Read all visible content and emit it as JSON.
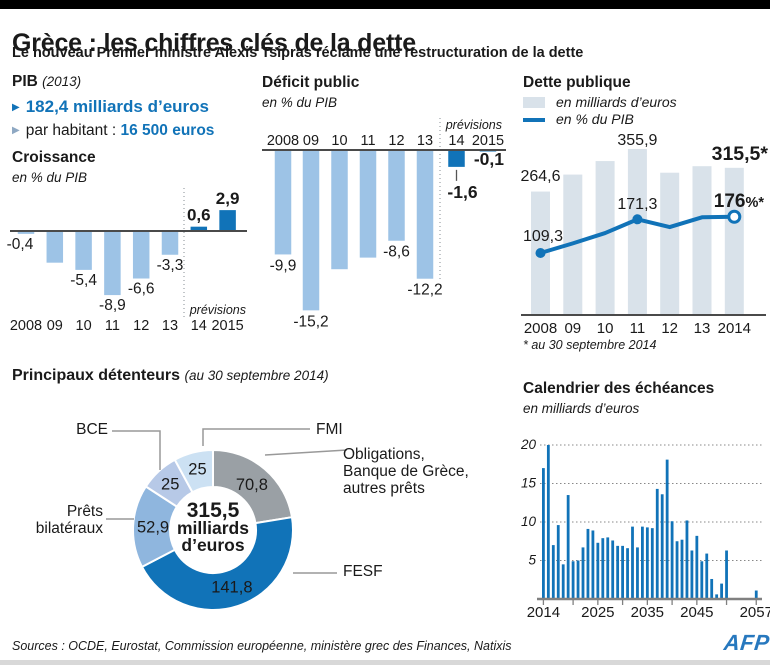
{
  "header": {
    "title": "Grèce : les chiffres clés de la dette",
    "subtitle": "Le nouveau Premier ministre Alexis Tsipras réclame une restructuration de la dette"
  },
  "pib": {
    "label": "PIB",
    "year": "(2013)",
    "bullet1": "182,4 milliards d’euros",
    "bullet2_prefix": "par habitant : ",
    "bullet2_value": "16 500 euros"
  },
  "colors": {
    "accent_blue": "#1173b8",
    "light_blue": "#9dc3e6",
    "pale_bar": "#d9e2ea",
    "gray_slice": "#9aa0a5",
    "axis_gray": "#4a4a4a"
  },
  "chart_data": [
    {
      "id": "croissance",
      "type": "bar",
      "title": "Croissance",
      "unit_label": "en % du PIB",
      "categories": [
        "2008",
        "09",
        "10",
        "11",
        "12",
        "13",
        "14",
        "2015"
      ],
      "values": [
        -0.4,
        -4.4,
        -5.4,
        -8.9,
        -6.6,
        -3.3,
        0.6,
        2.9
      ],
      "bar_labels": [
        "-0,4",
        "",
        "-5,4",
        "-8,9",
        "-6,6",
        "-3,3",
        "0,6",
        "2,9"
      ],
      "forecast_start_index": 6,
      "forecast_note": "prévisions",
      "ylim": [
        -9.5,
        3.5
      ]
    },
    {
      "id": "deficit",
      "type": "bar",
      "title": "Déficit public",
      "unit_label": "en % du PIB",
      "categories": [
        "2008",
        "09",
        "10",
        "11",
        "12",
        "13",
        "14",
        "2015"
      ],
      "values": [
        -9.9,
        -15.2,
        -11.3,
        -10.2,
        -8.6,
        -12.2,
        -1.6,
        -0.1
      ],
      "bar_labels": [
        "-9,9",
        "-15,2",
        "",
        "",
        "-8,6",
        "-12,2",
        "-1,6",
        "-0,1"
      ],
      "forecast_start_index": 6,
      "forecast_note": "prévisions",
      "ylim": [
        -16,
        0
      ]
    },
    {
      "id": "dette",
      "type": "bar-line",
      "title": "Dette publique",
      "legend": [
        {
          "label": "en milliards d’euros",
          "swatch": "bar"
        },
        {
          "label": "en % du PIB",
          "swatch": "line"
        }
      ],
      "categories": [
        "2008",
        "09",
        "10",
        "11",
        "12",
        "13",
        "2014"
      ],
      "series": [
        {
          "name": "en milliards d’euros",
          "type": "bar",
          "values": [
            264.6,
            301,
            330,
            355.9,
            305,
            319,
            315.5
          ],
          "labels": [
            "264,6",
            "",
            "",
            "355,9",
            "",
            "",
            "315,5*"
          ]
        },
        {
          "name": "en % du PIB",
          "type": "line",
          "values": [
            109.3,
            127,
            146,
            171.3,
            157,
            175,
            176
          ],
          "labels": [
            "109,3",
            "",
            "",
            "171,3",
            "",
            "",
            "176%*"
          ]
        }
      ],
      "footnote": "* au 30 septembre 2014"
    },
    {
      "id": "detenteurs",
      "type": "pie",
      "title": "Principaux détenteurs",
      "subtitle": "(au 30 septembre 2014)",
      "center_label": [
        "315,5",
        "milliards",
        "d’euros"
      ],
      "total": 315.5,
      "slices": [
        {
          "label": "Obligations, Banque de Grèce, autres prêts",
          "callout": [
            "Obligations,",
            "Banque de Grèce,",
            "autres prêts"
          ],
          "value": 70.8,
          "display": "70,8",
          "color": "#9aa0a5"
        },
        {
          "label": "FESF",
          "callout": [
            "FESF"
          ],
          "value": 141.8,
          "display": "141,8",
          "color": "#1173b8"
        },
        {
          "label": "Prêts bilatéraux",
          "callout": [
            "Prêts",
            "bilatéraux"
          ],
          "value": 52.9,
          "display": "52,9",
          "color": "#8fb6de"
        },
        {
          "label": "BCE",
          "callout": [
            "BCE"
          ],
          "value": 25,
          "display": "25",
          "color": "#b7c9e7"
        },
        {
          "label": "FMI",
          "callout": [
            "FMI"
          ],
          "value": 25,
          "display": "25",
          "color": "#cce1f3"
        }
      ]
    },
    {
      "id": "calendrier",
      "type": "bar",
      "title": "Calendrier des échéances",
      "unit_label": "en milliards d’euros",
      "x_start_year": 2014,
      "x_tick_labels": [
        "2014",
        "2025",
        "2035",
        "2045",
        "2057"
      ],
      "y_ticks": [
        5,
        10,
        15,
        20
      ],
      "ylim": [
        0,
        20
      ],
      "values": [
        17,
        20,
        7,
        9.6,
        4.5,
        13.5,
        4.9,
        5,
        6.7,
        9.1,
        8.9,
        7.3,
        7.9,
        8,
        7.6,
        6.9,
        6.9,
        6.6,
        9.4,
        6.7,
        9.4,
        9.3,
        9.2,
        14.3,
        13.6,
        18.1,
        10.1,
        7.5,
        7.7,
        10.2,
        6.3,
        8.2,
        4.9,
        5.9,
        2.6,
        0.6,
        2,
        6.3,
        0,
        0,
        0,
        0,
        0,
        1.1
      ]
    }
  ],
  "footer": {
    "sources": "Sources : OCDE, Eurostat, Commission européenne, ministère grec des Finances, Natixis",
    "logo": "AFP"
  }
}
